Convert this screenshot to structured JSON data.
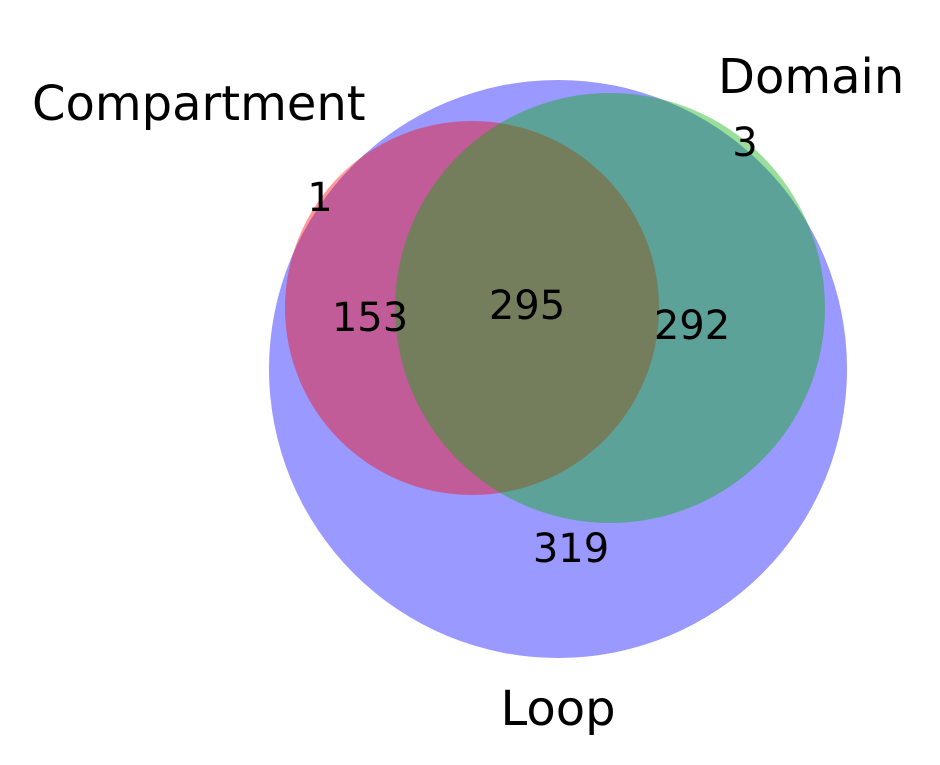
{
  "venn": {
    "sets": [
      {
        "name": "Compartment",
        "color": "#ff0000"
      },
      {
        "name": "Domain",
        "color": "#00b000"
      },
      {
        "name": "Loop",
        "color": "#0000ff"
      }
    ],
    "regions": [
      {
        "sets": [
          "Compartment"
        ],
        "label": "1"
      },
      {
        "sets": [
          "Domain"
        ],
        "label": "3"
      },
      {
        "sets": [
          "Compartment",
          "Loop"
        ],
        "label": "153"
      },
      {
        "sets": [
          "Compartment",
          "Domain",
          "Loop"
        ],
        "label": "295"
      },
      {
        "sets": [
          "Domain",
          "Loop"
        ],
        "label": "292"
      },
      {
        "sets": [
          "Loop"
        ],
        "label": "319"
      }
    ]
  }
}
